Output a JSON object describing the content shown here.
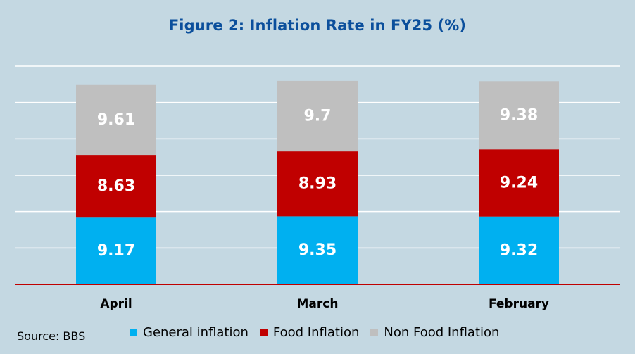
{
  "chart_data": {
    "type": "bar",
    "stacked": true,
    "title": "Figure 2: Inflation Rate in FY25 (%)",
    "categories": [
      "April",
      "March",
      "February"
    ],
    "series": [
      {
        "name": "General inflation",
        "values": [
          9.17,
          9.35,
          9.32
        ],
        "color": "#00b0f0"
      },
      {
        "name": "Food Inflation",
        "values": [
          8.63,
          8.93,
          9.24
        ],
        "color": "#c00000"
      },
      {
        "name": "Non Food Inflation",
        "values": [
          9.61,
          9.7,
          9.38
        ],
        "color": "#bfbfbf"
      }
    ],
    "ylim": [
      0,
      30
    ],
    "grid": true,
    "legend_position": "bottom",
    "axis_line_color": "#c00000",
    "background_color": "#c4d8e2"
  },
  "source": "Source: BBS"
}
